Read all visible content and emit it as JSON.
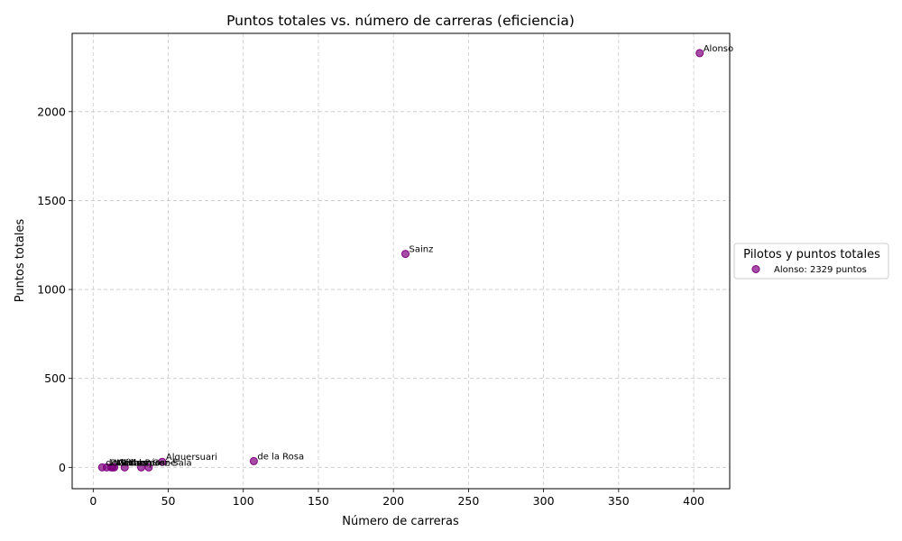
{
  "chart_data": {
    "type": "scatter",
    "title": "Puntos totales vs. número de carreras (eficiencia)",
    "xlabel": "Número de carreras",
    "ylabel": "Puntos totales",
    "xlim": [
      -14,
      424
    ],
    "ylim": [
      -120,
      2440
    ],
    "xticks": [
      0,
      50,
      100,
      150,
      200,
      250,
      300,
      350,
      400
    ],
    "yticks": [
      0,
      500,
      1000,
      1500,
      2000
    ],
    "grid": true,
    "marker_color": "#800080",
    "points": [
      {
        "label": "Alonso",
        "x": 404,
        "y": 2329
      },
      {
        "label": "Sainz",
        "x": 208,
        "y": 1200
      },
      {
        "label": "de la Rosa",
        "x": 107,
        "y": 35
      },
      {
        "label": "Alguersuari",
        "x": 46,
        "y": 31
      },
      {
        "label": "Gené",
        "x": 37,
        "y": 0
      },
      {
        "label": "de Villota",
        "x": 6,
        "y": 0
      },
      {
        "label": "Campos",
        "x": 21,
        "y": 0
      },
      {
        "label": "Merhi",
        "x": 13,
        "y": 0
      },
      {
        "label": "Pérez-Sala",
        "x": 32,
        "y": 0
      },
      {
        "label": "Palacios",
        "x": 9,
        "y": 0
      },
      {
        "label": "Gómez",
        "x": 14,
        "y": 0
      },
      {
        "label": "Villota",
        "x": 12,
        "y": 0
      }
    ],
    "legend": {
      "title": "Pilotos y puntos totales",
      "position": "center-right-outside",
      "entries": [
        "Alonso: 2329 puntos"
      ]
    }
  }
}
